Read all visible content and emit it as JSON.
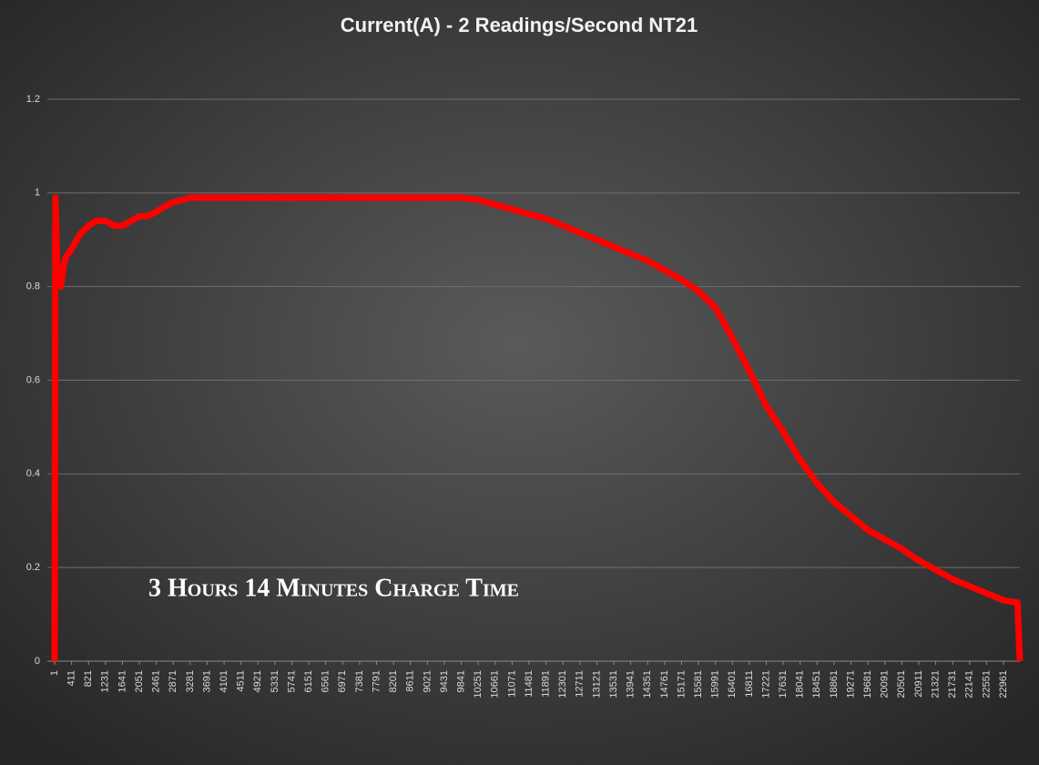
{
  "chart_data": {
    "type": "line",
    "title": "Current(A) - 2 Readings/Second  NT21",
    "annotation": "3 Hours 14 Minutes Charge Time",
    "color": "#ff0000",
    "grid": true,
    "x": [
      1,
      20,
      60,
      150,
      250,
      411,
      600,
      821,
      1000,
      1231,
      1450,
      1641,
      1850,
      2051,
      2250,
      2461,
      2650,
      2871,
      3100,
      3281,
      3691,
      4101,
      5331,
      6561,
      7791,
      9021,
      9841,
      10251,
      10661,
      11071,
      11481,
      11891,
      12301,
      12711,
      13121,
      13531,
      13941,
      14351,
      14761,
      15171,
      15581,
      15991,
      16401,
      16811,
      17221,
      17631,
      18041,
      18451,
      18861,
      19271,
      19681,
      20091,
      20501,
      20911,
      21321,
      21731,
      22141,
      22551,
      22961,
      23300,
      23358
    ],
    "values": [
      0,
      0.99,
      0.85,
      0.8,
      0.86,
      0.88,
      0.91,
      0.93,
      0.94,
      0.94,
      0.93,
      0.93,
      0.94,
      0.95,
      0.95,
      0.96,
      0.97,
      0.98,
      0.985,
      0.99,
      0.99,
      0.99,
      0.99,
      0.99,
      0.99,
      0.99,
      0.99,
      0.985,
      0.975,
      0.965,
      0.955,
      0.945,
      0.93,
      0.915,
      0.9,
      0.885,
      0.87,
      0.855,
      0.835,
      0.815,
      0.79,
      0.755,
      0.69,
      0.62,
      0.545,
      0.49,
      0.43,
      0.38,
      0.34,
      0.31,
      0.28,
      0.26,
      0.24,
      0.215,
      0.195,
      0.175,
      0.16,
      0.145,
      0.13,
      0.125,
      0
    ],
    "xlim": [
      1,
      23358
    ],
    "xticks": [
      1,
      411,
      821,
      1231,
      1641,
      2051,
      2461,
      2871,
      3281,
      3691,
      4101,
      4511,
      4921,
      5331,
      5741,
      6151,
      6561,
      6971,
      7381,
      7791,
      8201,
      8611,
      9021,
      9431,
      9841,
      10251,
      10661,
      11071,
      11481,
      11891,
      12301,
      12711,
      13121,
      13531,
      13941,
      14351,
      14761,
      15171,
      15581,
      15991,
      16401,
      16811,
      17221,
      17631,
      18041,
      18451,
      18861,
      19271,
      19681,
      20091,
      20501,
      20911,
      21321,
      21731,
      22141,
      22551,
      22961
    ],
    "ylim": [
      0,
      1.2
    ],
    "yticks": [
      0,
      0.2,
      0.4,
      0.6,
      0.8,
      1,
      1.2
    ]
  }
}
